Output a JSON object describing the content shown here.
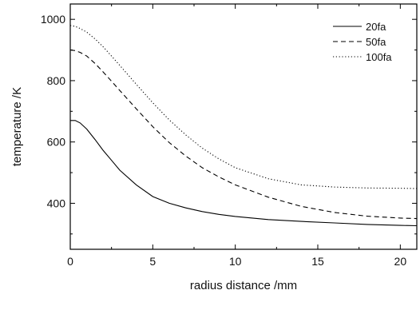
{
  "chart_data": {
    "type": "line",
    "xlabel": "radius distance  /mm",
    "ylabel": "temperature  /K",
    "xlim": [
      0,
      21
    ],
    "ylim": [
      250,
      1050
    ],
    "xticks": [
      0,
      5,
      10,
      15,
      20
    ],
    "yticks": [
      400,
      600,
      800,
      1000
    ],
    "grid": false,
    "legend_position": "top-right",
    "series": [
      {
        "name": "20fa",
        "dash": "solid",
        "color": "#000000",
        "x": [
          0,
          0.3,
          0.6,
          1,
          1.5,
          2,
          2.5,
          3,
          4,
          5,
          6,
          7,
          8,
          9,
          10,
          12,
          14,
          16,
          18,
          20,
          21
        ],
        "y": [
          670,
          670,
          662,
          642,
          608,
          572,
          540,
          508,
          460,
          422,
          400,
          385,
          373,
          364,
          357,
          347,
          341,
          336,
          331,
          328,
          327
        ]
      },
      {
        "name": "50fa",
        "dash": "dashed",
        "color": "#000000",
        "x": [
          0,
          0.3,
          0.6,
          1,
          1.5,
          2,
          2.5,
          3,
          4,
          5,
          6,
          7,
          8,
          9,
          10,
          12,
          14,
          16,
          18,
          20,
          21
        ],
        "y": [
          900,
          898,
          892,
          880,
          856,
          828,
          798,
          768,
          708,
          650,
          598,
          554,
          516,
          486,
          460,
          420,
          390,
          370,
          358,
          352,
          350
        ]
      },
      {
        "name": "100fa",
        "dash": "dotted",
        "color": "#000000",
        "x": [
          0,
          0.3,
          0.6,
          1,
          1.5,
          2,
          2.5,
          3,
          4,
          5,
          6,
          7,
          8,
          9,
          10,
          12,
          14,
          16,
          18,
          20,
          21
        ],
        "y": [
          980,
          977,
          970,
          958,
          936,
          910,
          880,
          850,
          788,
          728,
          672,
          623,
          580,
          545,
          516,
          480,
          460,
          453,
          450,
          449,
          448
        ]
      }
    ]
  }
}
